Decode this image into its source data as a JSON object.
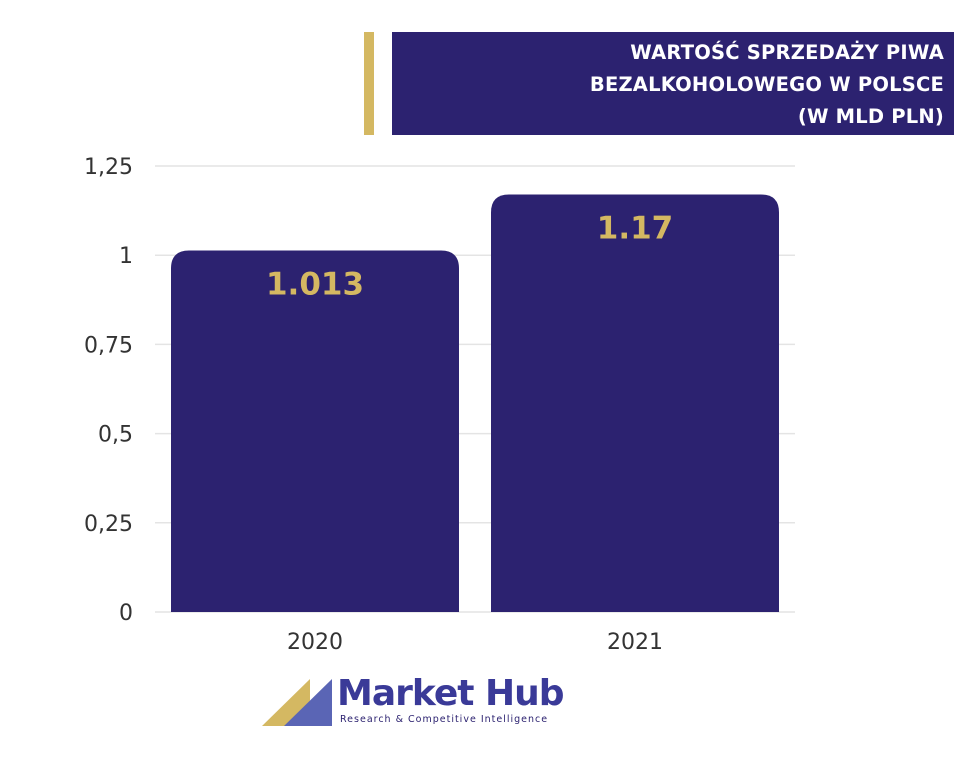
{
  "title_lines": [
    "WARTOŚĆ SPRZEDAŻY PIWA",
    "BEZALKOHOLOWEGO W POLSCE",
    "(W MLD PLN)"
  ],
  "colors": {
    "bar": "#2c2270",
    "accent": "#d4b862",
    "title_bg": "#2c2270",
    "grid": "#e4e4e4",
    "axis_text": "#333333",
    "logo_blue": "#5a65b5",
    "logo_name": "#3a3a98",
    "logo_tagline": "#2c2270"
  },
  "chart_data": {
    "type": "bar",
    "title": "WARTOŚĆ SPRZEDAŻY PIWA BEZALKOHOLOWEGO W POLSCE (W MLD PLN)",
    "categories": [
      "2020",
      "2021"
    ],
    "values": [
      1.013,
      1.17
    ],
    "value_labels": [
      "1.013",
      "1.17"
    ],
    "y_ticks": [
      0,
      0.25,
      0.5,
      0.75,
      1,
      1.25
    ],
    "y_tick_labels": [
      "0",
      "0,25",
      "0,5",
      "0,75",
      "1",
      "1,25"
    ],
    "ylim": [
      0,
      1.25
    ],
    "grid": true,
    "legend": "none",
    "xlabel": "",
    "ylabel": ""
  },
  "logo": {
    "name": "Market Hub",
    "tagline": "Research & Competitive Intelligence"
  }
}
